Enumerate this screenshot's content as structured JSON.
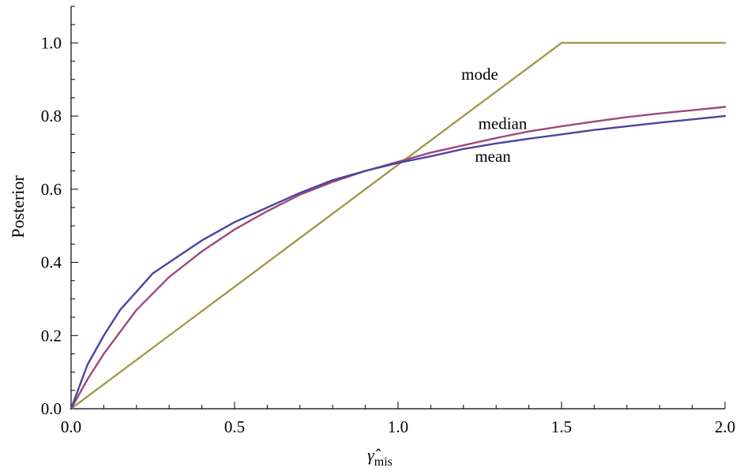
{
  "chart_data": {
    "type": "line",
    "xlabel": "γ̂",
    "xlabel_sub": "mis",
    "ylabel": "Posterior",
    "xlim": [
      0,
      2
    ],
    "ylim": [
      0,
      1.1
    ],
    "x_ticks": [
      "0.0",
      "0.5",
      "1.0",
      "1.5",
      "2.0"
    ],
    "y_ticks": [
      "0.0",
      "0.2",
      "0.4",
      "0.6",
      "0.8",
      "1.0"
    ],
    "grid": false,
    "legend": "none",
    "series": [
      {
        "name": "mode",
        "color": "#a39a4a",
        "x": [
          0,
          1.5,
          2.0
        ],
        "y": [
          0,
          1.0,
          1.0
        ]
      },
      {
        "name": "median",
        "color": "#a0487a",
        "x": [
          0,
          0.05,
          0.1,
          0.15,
          0.2,
          0.25,
          0.3,
          0.4,
          0.5,
          0.6,
          0.7,
          0.8,
          0.9,
          1.0,
          1.1,
          1.2,
          1.3,
          1.4,
          1.5,
          1.6,
          1.7,
          1.8,
          1.9,
          2.0
        ],
        "y": [
          0,
          0.08,
          0.15,
          0.21,
          0.27,
          0.315,
          0.36,
          0.43,
          0.49,
          0.54,
          0.585,
          0.62,
          0.65,
          0.675,
          0.7,
          0.72,
          0.74,
          0.758,
          0.772,
          0.785,
          0.797,
          0.807,
          0.816,
          0.825
        ]
      },
      {
        "name": "mean",
        "color": "#4a44a2",
        "x": [
          0,
          0.05,
          0.1,
          0.15,
          0.2,
          0.25,
          0.3,
          0.4,
          0.5,
          0.6,
          0.7,
          0.8,
          0.9,
          1.0,
          1.1,
          1.2,
          1.3,
          1.4,
          1.5,
          1.6,
          1.7,
          1.8,
          1.9,
          2.0
        ],
        "y": [
          0,
          0.12,
          0.2,
          0.27,
          0.32,
          0.37,
          0.4,
          0.46,
          0.51,
          0.55,
          0.59,
          0.625,
          0.65,
          0.672,
          0.69,
          0.71,
          0.725,
          0.738,
          0.75,
          0.762,
          0.772,
          0.782,
          0.791,
          0.8
        ]
      }
    ]
  }
}
